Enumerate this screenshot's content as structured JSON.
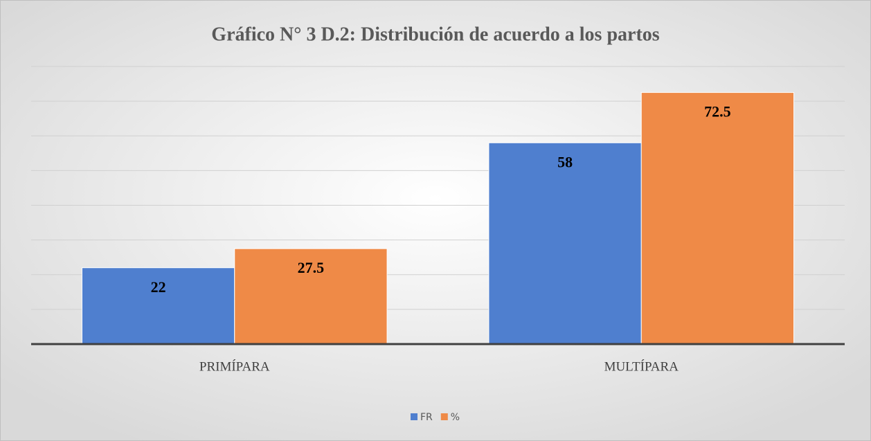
{
  "chart_data": {
    "type": "bar",
    "title": "Gráfico N° 3 D.2: Distribución de acuerdo a los partos",
    "categories": [
      "PRIMÍPARA",
      "MULTÍPARA"
    ],
    "series": [
      {
        "name": "FR",
        "color": "#4f7fcf",
        "values": [
          22,
          58
        ]
      },
      {
        "name": "%",
        "color": "#ef8a47",
        "values": [
          27.5,
          72.5
        ]
      }
    ],
    "ylim": [
      0,
      80
    ],
    "yticks": [
      0,
      10,
      20,
      30,
      40,
      50,
      60,
      70,
      80
    ],
    "grid": true,
    "legend": "bottom"
  }
}
